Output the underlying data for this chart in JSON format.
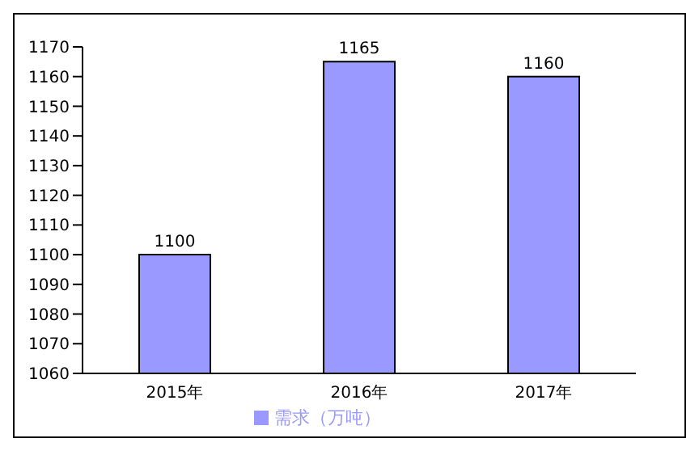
{
  "chart_data": {
    "type": "bar",
    "categories": [
      "2015年",
      "2016年",
      "2017年"
    ],
    "series": [
      {
        "name": "需求（万吨）",
        "color": "#9999ff",
        "values": [
          1100,
          1165,
          1160
        ]
      }
    ],
    "ylim": [
      1060,
      1170
    ],
    "yticks": [
      1060,
      1070,
      1080,
      1090,
      1100,
      1110,
      1120,
      1130,
      1140,
      1150,
      1160,
      1170
    ],
    "data_labels": true,
    "grid": false,
    "legend": "bottom"
  }
}
